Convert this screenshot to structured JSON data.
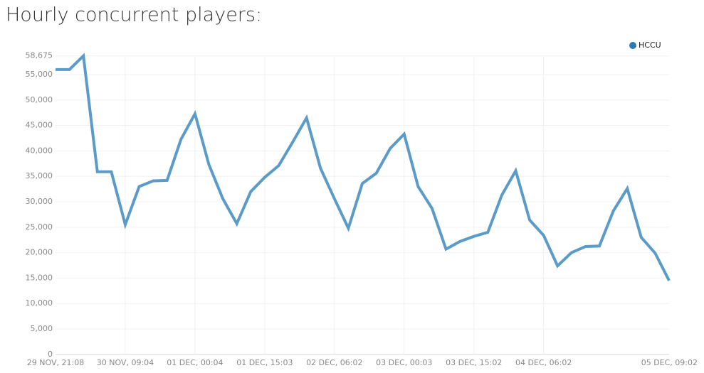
{
  "chart_data": {
    "type": "line",
    "title": "Hourly concurrent players:",
    "categories": [
      "29 NOV, 21:08",
      null,
      null,
      null,
      null,
      "30 NOV, 09:04",
      null,
      null,
      null,
      null,
      "01 DEC, 00:04",
      null,
      null,
      null,
      null,
      "01 DEC, 15:03",
      null,
      null,
      null,
      null,
      "02 DEC, 06:02",
      null,
      null,
      null,
      null,
      "03 DEC, 00:03",
      null,
      null,
      null,
      null,
      "03 DEC, 15:02",
      null,
      null,
      null,
      null,
      "04 DEC, 06:02",
      null,
      null,
      null,
      null,
      null,
      null,
      null,
      null,
      "05 DEC, 09:02"
    ],
    "series": [
      {
        "name": "HCCU",
        "color": "#5b9bc8",
        "legend_color": "#2a7ab9",
        "values": [
          56000,
          56000,
          58675,
          35900,
          35900,
          25500,
          33000,
          34100,
          34200,
          42300,
          47300,
          37300,
          30600,
          25700,
          32000,
          34800,
          37100,
          41700,
          46500,
          36600,
          30600,
          24800,
          33600,
          35600,
          40500,
          43300,
          33000,
          28700,
          20700,
          22200,
          23200,
          24000,
          31300,
          36100,
          26400,
          23400,
          17400,
          20000,
          21200,
          21300,
          28200,
          32600,
          23000,
          19900,
          14500
        ]
      }
    ],
    "ylim": [
      0,
      58675
    ],
    "yticks": [
      0,
      {
        "value": 5000,
        "label": "5,000"
      },
      {
        "value": 10000,
        "label": "10,000"
      },
      {
        "value": 15000,
        "label": "15,000"
      },
      {
        "value": 20000,
        "label": "20,000"
      },
      {
        "value": 25000,
        "label": "25,000"
      },
      {
        "value": 30000,
        "label": "30,000"
      },
      {
        "value": 35000,
        "label": "35,000"
      },
      {
        "value": 40000,
        "label": "40,000"
      },
      {
        "value": 45000,
        "label": "45,000"
      },
      {
        "value": 50000,
        "label": "50,000"
      },
      {
        "value": 55000,
        "label": "55,000"
      },
      {
        "value": 58675,
        "label": "58,675"
      }
    ],
    "grid": true,
    "legend": "top-right"
  }
}
